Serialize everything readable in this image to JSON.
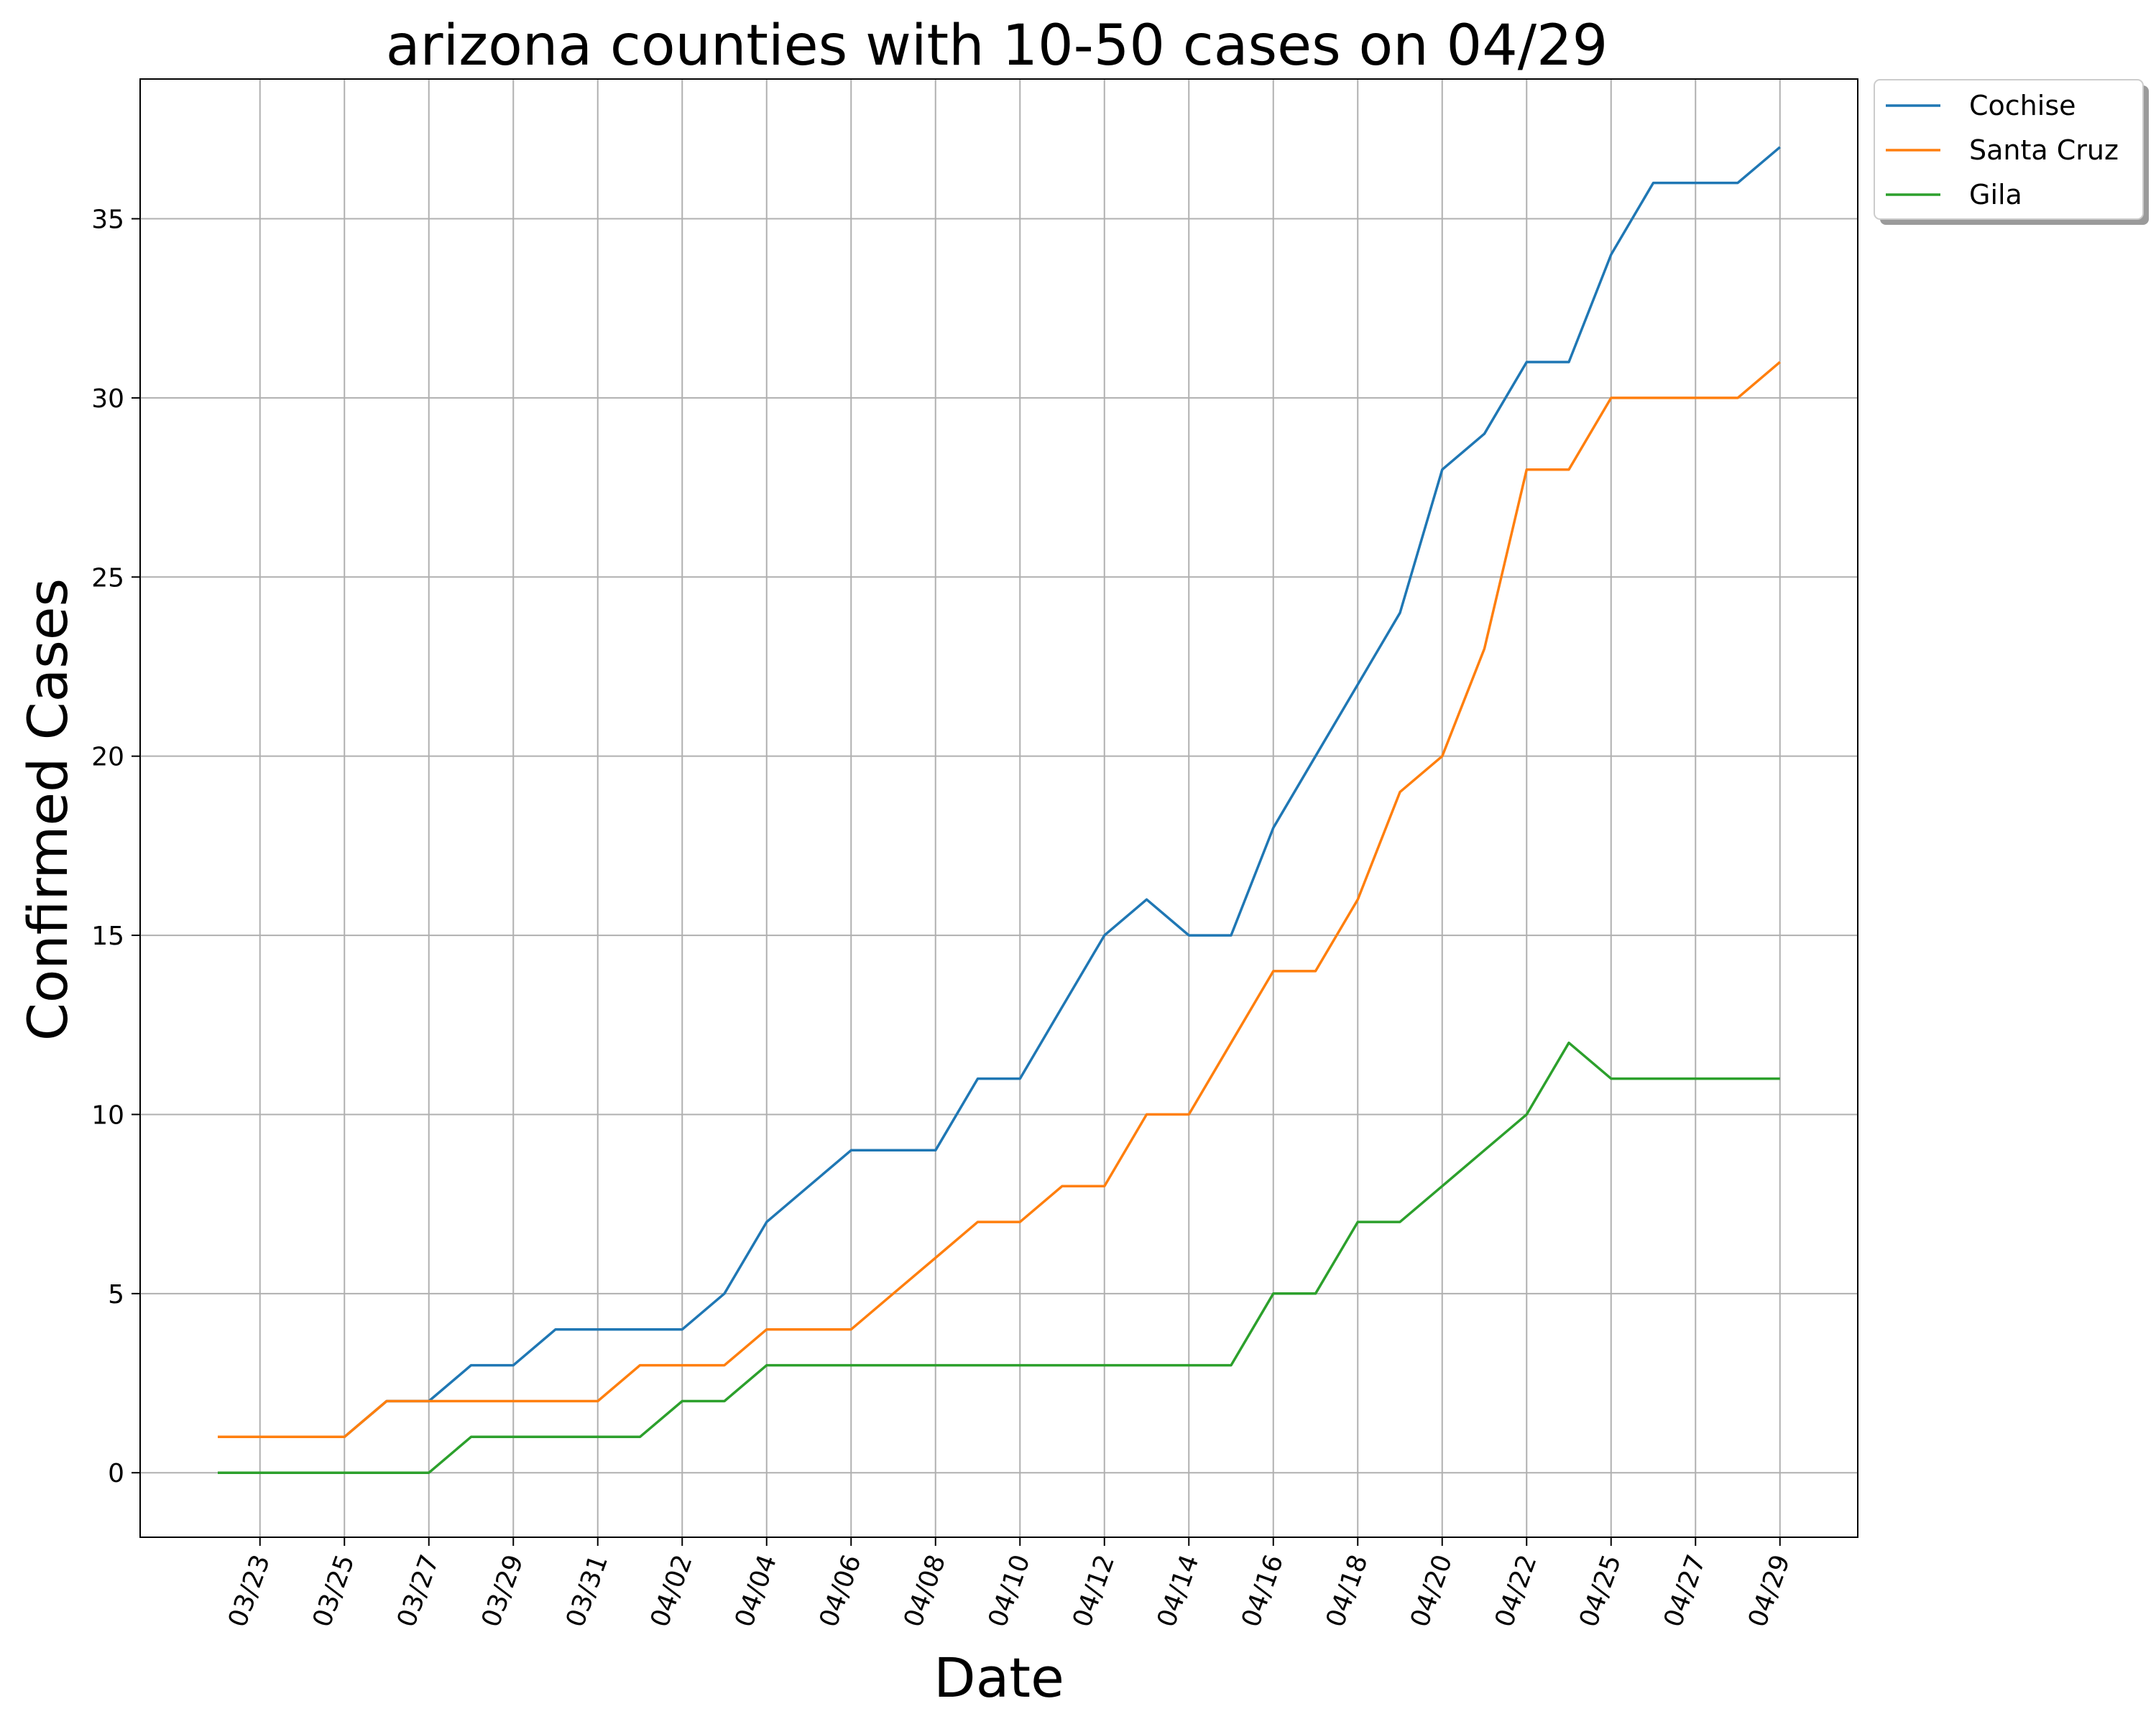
{
  "chart_data": {
    "type": "line",
    "title": "arizona counties with 10-50 cases on 04/29",
    "xlabel": "Date",
    "ylabel": "Confirmed Cases",
    "ylim": [
      -1.8,
      38.9
    ],
    "yticks": [
      0,
      5,
      10,
      15,
      20,
      25,
      30,
      35
    ],
    "grid": true,
    "legend_position": "outside top-right",
    "x": [
      "03/22",
      "03/23",
      "03/24",
      "03/25",
      "03/26",
      "03/27",
      "03/28",
      "03/29",
      "03/30",
      "03/31",
      "04/01",
      "04/02",
      "04/03",
      "04/04",
      "04/05",
      "04/06",
      "04/07",
      "04/08",
      "04/09",
      "04/10",
      "04/11",
      "04/12",
      "04/13",
      "04/14",
      "04/15",
      "04/16",
      "04/17",
      "04/18",
      "04/19",
      "04/20",
      "04/21",
      "04/22",
      "04/23",
      "04/25",
      "04/26",
      "04/27",
      "04/28",
      "04/29"
    ],
    "xticks": [
      "03/23",
      "03/25",
      "03/27",
      "03/29",
      "03/31",
      "04/02",
      "04/04",
      "04/06",
      "04/08",
      "04/10",
      "04/12",
      "04/14",
      "04/16",
      "04/18",
      "04/20",
      "04/22",
      "04/25",
      "04/27",
      "04/29"
    ],
    "series": [
      {
        "name": "Cochise",
        "color": "#1f77b4",
        "values": [
          1,
          1,
          1,
          1,
          2,
          2,
          3,
          3,
          4,
          4,
          4,
          4,
          5,
          7,
          8,
          9,
          9,
          9,
          11,
          11,
          13,
          15,
          16,
          15,
          15,
          18,
          20,
          22,
          24,
          28,
          29,
          31,
          31,
          34,
          36,
          36,
          36,
          37
        ]
      },
      {
        "name": "Santa Cruz",
        "color": "#ff7f0e",
        "values": [
          1,
          1,
          1,
          1,
          2,
          2,
          2,
          2,
          2,
          2,
          3,
          3,
          3,
          4,
          4,
          4,
          5,
          6,
          7,
          7,
          8,
          8,
          10,
          10,
          12,
          14,
          14,
          16,
          19,
          20,
          23,
          28,
          28,
          30,
          30,
          30,
          30,
          31
        ]
      },
      {
        "name": "Gila",
        "color": "#2ca02c",
        "values": [
          0,
          0,
          0,
          0,
          0,
          0,
          1,
          1,
          1,
          1,
          1,
          2,
          2,
          3,
          3,
          3,
          3,
          3,
          3,
          3,
          3,
          3,
          3,
          3,
          3,
          5,
          5,
          7,
          7,
          8,
          9,
          10,
          12,
          11,
          11,
          11,
          11,
          11
        ]
      }
    ]
  }
}
